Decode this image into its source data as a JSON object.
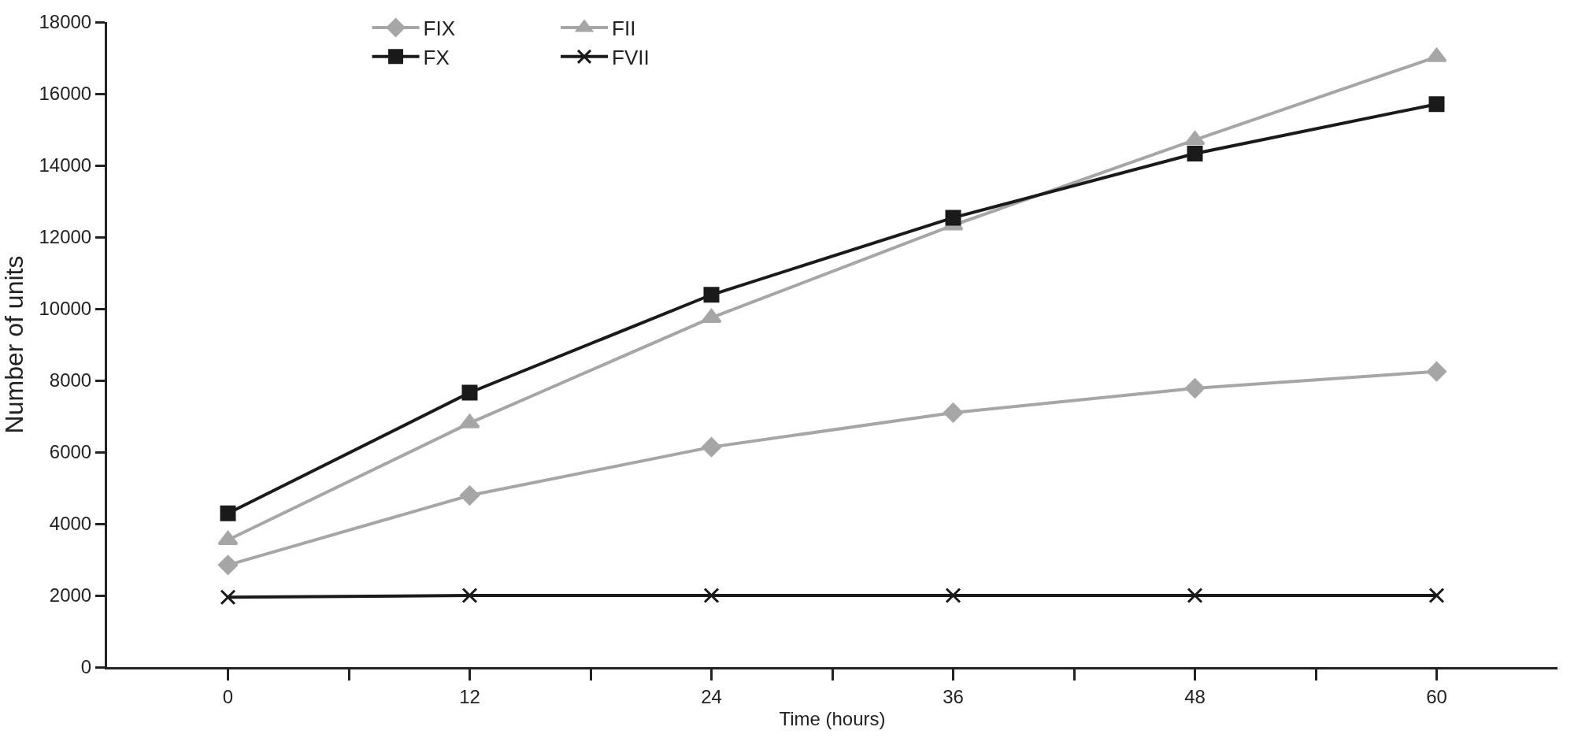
{
  "chart_data": {
    "type": "line",
    "xlabel": "Time (hours)",
    "ylabel": "Number of units",
    "x": [
      0,
      12,
      24,
      36,
      48,
      60
    ],
    "xlim": [
      -6,
      66
    ],
    "xticks": [
      0,
      {
        "value": 6,
        "label": null
      },
      12,
      {
        "value": 18,
        "label": null
      },
      24,
      {
        "value": 30,
        "label": null
      },
      36,
      {
        "value": 42,
        "label": null
      },
      48,
      {
        "value": 54,
        "label": null
      },
      60
    ],
    "ylim": [
      0,
      18000
    ],
    "yticks": [
      0,
      2000,
      4000,
      6000,
      8000,
      10000,
      12000,
      14000,
      16000,
      18000
    ],
    "legend": "top left",
    "line_style": "solid",
    "series": [
      {
        "name": "FIX",
        "color": "#a6a6a6",
        "marker": "diamond",
        "values": [
          2850,
          4790,
          6140,
          7100,
          7780,
          8250
        ]
      },
      {
        "name": "FII",
        "color": "#a6a6a6",
        "marker": "triangle",
        "values": [
          3550,
          6810,
          9750,
          12330,
          14710,
          17030
        ]
      },
      {
        "name": "FX",
        "color": "#1a1a1a",
        "marker": "square",
        "values": [
          4290,
          7660,
          10390,
          12540,
          14330,
          15710
        ]
      },
      {
        "name": "FVII",
        "color": "#1a1a1a",
        "marker": "cross",
        "values": [
          1950,
          2000,
          2000,
          2000,
          2000,
          2000
        ]
      }
    ]
  }
}
